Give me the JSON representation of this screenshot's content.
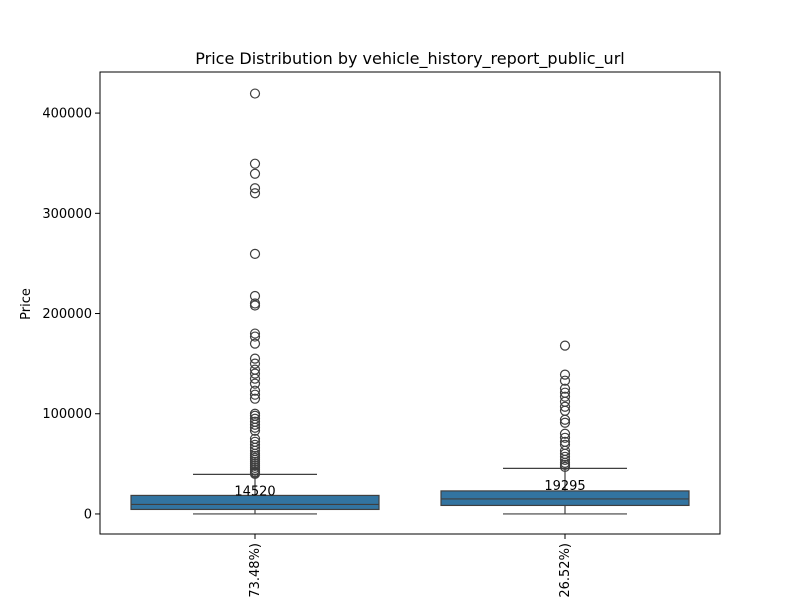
{
  "chart_data": {
    "type": "box",
    "title": "Price Distribution by vehicle_history_report_public_url",
    "xlabel": "",
    "ylabel": "Price",
    "ylim": [
      -20000,
      441000
    ],
    "yticks": [
      0,
      100000,
      200000,
      300000,
      400000
    ],
    "ytick_labels": [
      "0",
      "100000",
      "200000",
      "300000",
      "400000"
    ],
    "grid": false,
    "box_color": "#3274a1",
    "categories": [
      "73.48%)",
      "26.52%)"
    ],
    "boxes": [
      {
        "category": "73.48%)",
        "min": 0,
        "q1": 4500,
        "median": 9500,
        "q3": 18500,
        "whisker_high": 39500,
        "annotation": "14520",
        "outliers": [
          419500,
          349500,
          339500,
          325000,
          320000,
          259500,
          217500,
          210000,
          208000,
          180000,
          177000,
          170000,
          155000,
          150000,
          144000,
          140000,
          135000,
          130000,
          123000,
          119000,
          115000,
          100000,
          98000,
          95000,
          92000,
          89000,
          86000,
          83000,
          75000,
          72000,
          69000,
          66000,
          63000,
          60000,
          58000,
          56000,
          54000,
          52000,
          50000,
          48000,
          46000,
          44000,
          42000,
          41000,
          40000
        ]
      },
      {
        "category": "26.52%)",
        "min": 0,
        "q1": 8500,
        "median": 15000,
        "q3": 23000,
        "whisker_high": 45500,
        "annotation": "19295",
        "outliers": [
          168000,
          139000,
          133000,
          125000,
          121000,
          117000,
          112000,
          107000,
          103000,
          94000,
          91000,
          80000,
          76000,
          72000,
          69000,
          63000,
          60000,
          57000,
          54000,
          51000,
          49000,
          47000
        ]
      }
    ]
  }
}
